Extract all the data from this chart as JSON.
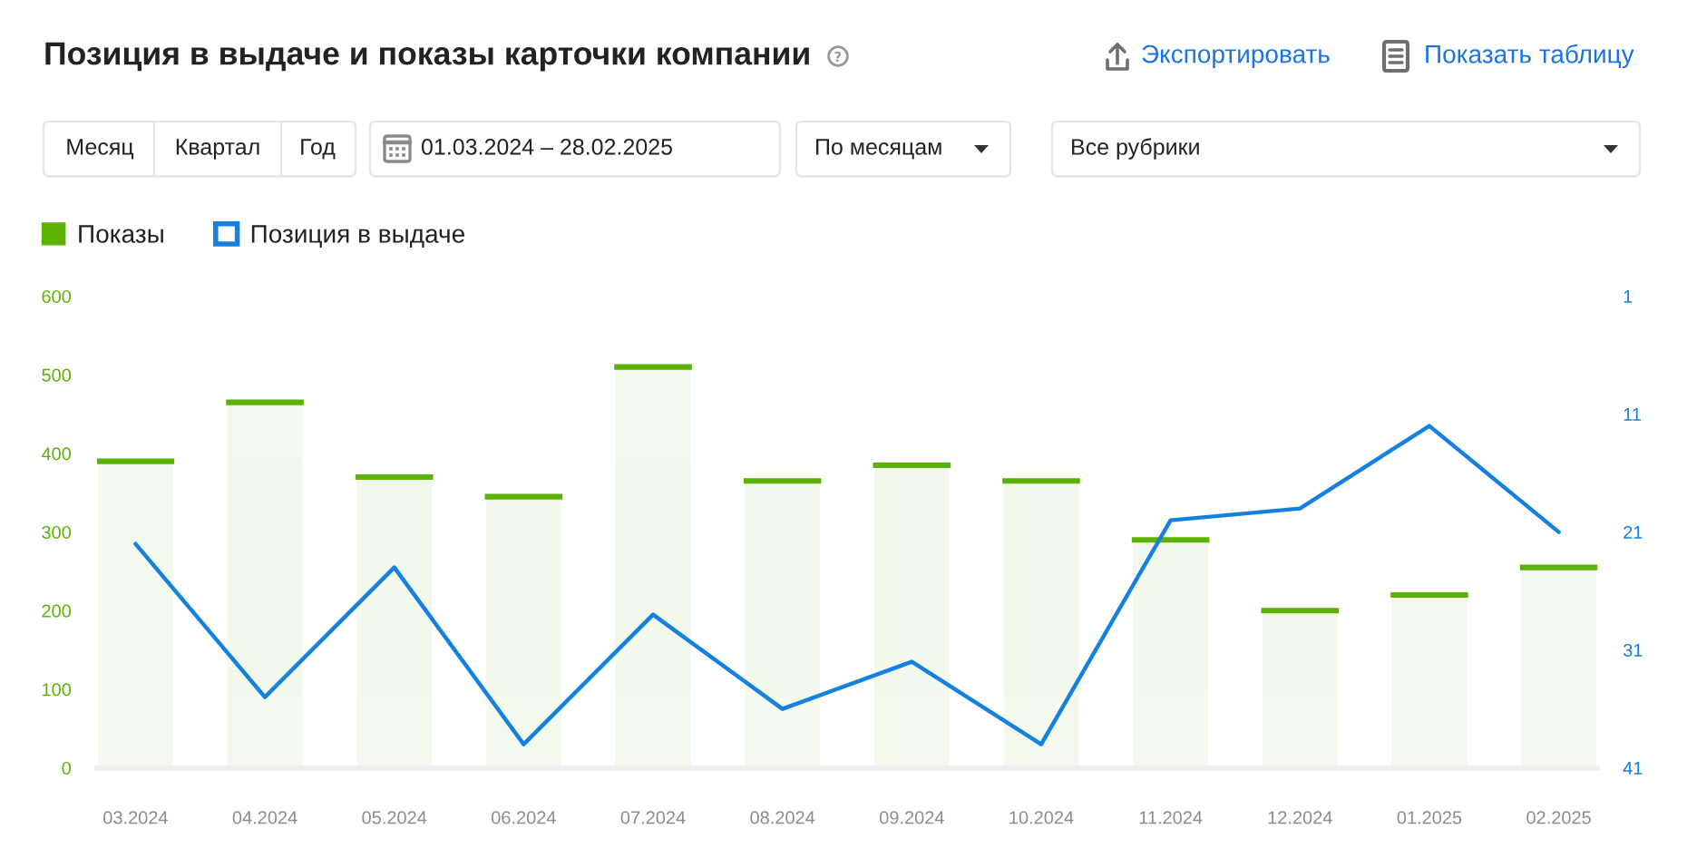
{
  "chart_data": {
    "type": "bar",
    "title": "Позиция в выдаче и показы карточки компании",
    "categories": [
      "03.2024",
      "04.2024",
      "05.2024",
      "06.2024",
      "07.2024",
      "08.2024",
      "09.2024",
      "10.2024",
      "11.2024",
      "12.2024",
      "01.2025",
      "02.2025"
    ],
    "series": [
      {
        "name": "Показы",
        "color": "#5bb200",
        "values": [
          390,
          465,
          370,
          345,
          510,
          365,
          385,
          365,
          290,
          200,
          220,
          255
        ]
      },
      {
        "name": "Позиция в выдаче",
        "type": "line",
        "axis": "y2",
        "color": "#1480e0",
        "values": [
          22,
          35,
          24,
          39,
          28,
          36,
          32,
          39,
          20,
          19,
          12,
          21
        ]
      }
    ],
    "ylim": [
      0,
      600
    ],
    "yticks": [
      0,
      100,
      200,
      300,
      400,
      500,
      600
    ],
    "y2lim": [
      41,
      1
    ],
    "y2ticks": [
      1,
      11,
      21,
      31,
      41
    ],
    "legend": "top left",
    "annotations": [
      "Экспортировать",
      "Показать таблицу",
      "Месяц",
      "Квартал",
      "Год",
      "01.03.2024 – 28.02.2025",
      "По месяцам",
      "Все рубрики"
    ]
  }
}
